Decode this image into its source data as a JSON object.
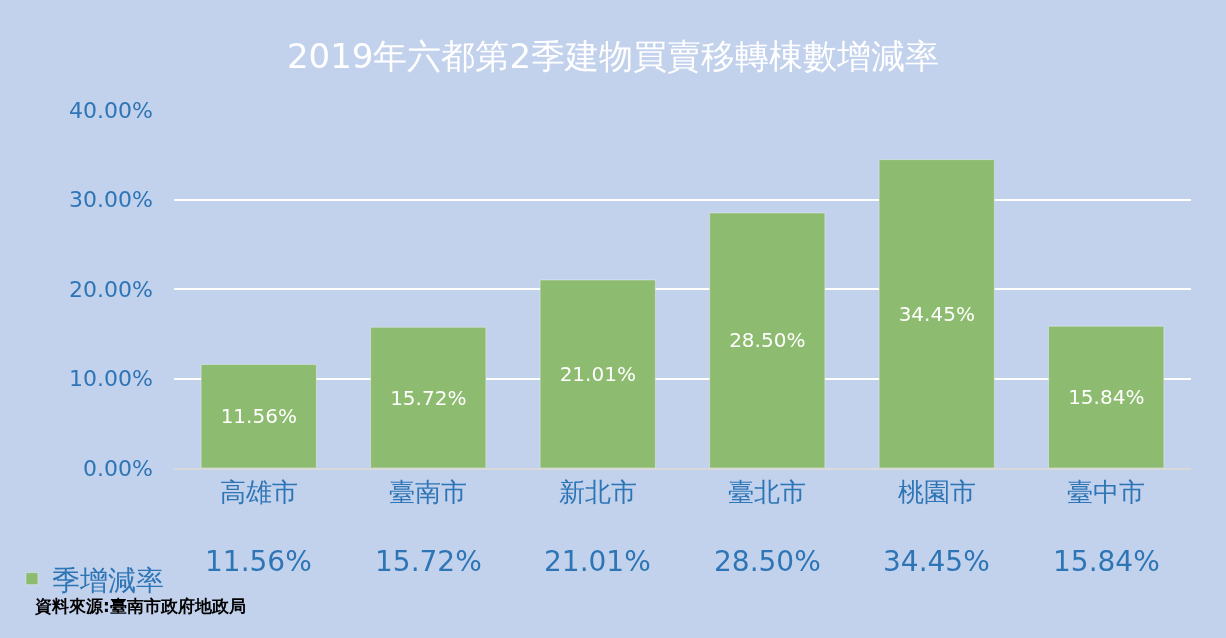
{
  "chart_data": {
    "type": "bar",
    "title": "2019年六都第2季建物買賣移轉棟數增減率",
    "categories": [
      "高雄市",
      "臺南市",
      "新北市",
      "臺北市",
      "桃園市",
      "臺中市"
    ],
    "series": [
      {
        "name": "季增減率",
        "color": "#8dbb6f",
        "values": [
          11.56,
          15.72,
          21.01,
          28.5,
          34.45,
          15.84
        ],
        "value_labels": [
          "11.56%",
          "15.72%",
          "21.01%",
          "28.50%",
          "34.45%",
          "15.84%"
        ]
      }
    ],
    "ylim": [
      0,
      40
    ],
    "yticks": [
      {
        "value": 0,
        "label": "0.00%"
      },
      {
        "value": 10,
        "label": "10.00%"
      },
      {
        "value": 20,
        "label": "20.00%"
      },
      {
        "value": 30,
        "label": "30.00%"
      },
      {
        "value": 40,
        "label": "40.00%"
      }
    ],
    "grid": "y",
    "legend": "bottom left",
    "annotations": [
      "資料來源:臺南市政府地政局"
    ]
  }
}
